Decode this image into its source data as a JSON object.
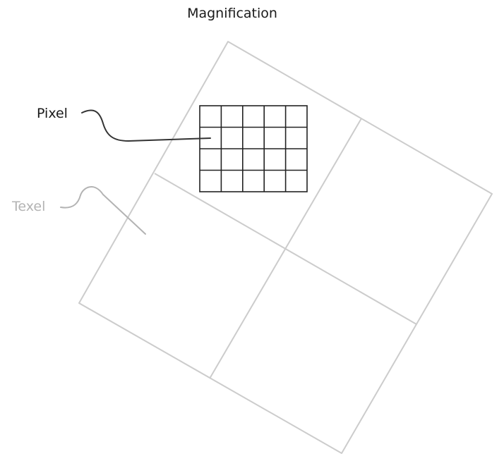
{
  "title": "Magnification",
  "labels": {
    "pixel": "Pixel",
    "texel": "Texel"
  },
  "texture_grid": {
    "rows": 2,
    "cols": 2
  },
  "pixel_grid": {
    "rows": 4,
    "cols": 5
  },
  "colors": {
    "texel_lines": "#cccccc",
    "pixel_lines": "#222222",
    "pixel_label": "#1a1a1a",
    "texel_label": "#b3b3b3",
    "title": "#1a1a1a"
  }
}
